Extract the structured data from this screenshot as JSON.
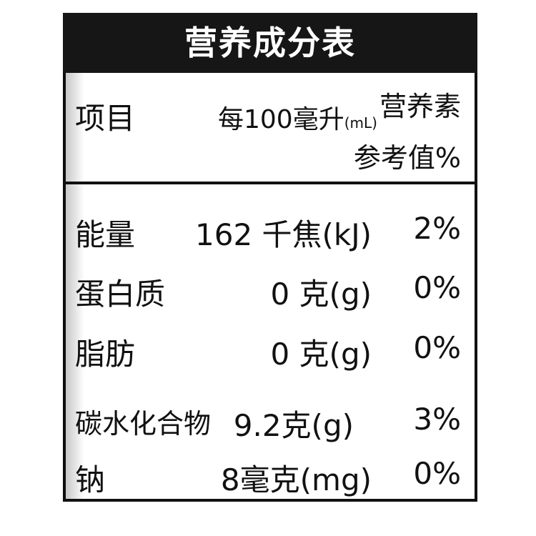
{
  "title": "营养成分表",
  "header": {
    "item": "项目",
    "per": "每100毫升",
    "per_unit": "(mL)",
    "nrv_line1": "营养素",
    "nrv_line2": "参考值%"
  },
  "rows": [
    {
      "name": "能量",
      "value": "162 千焦(kJ)",
      "nrv": "2%"
    },
    {
      "name": "蛋白质",
      "value": "0 克(g)",
      "nrv": "0%"
    },
    {
      "name": "脂肪",
      "value": "0 克(g)",
      "nrv": "0%"
    },
    {
      "name": "碳水化合物",
      "value": "9.2克(g)",
      "nrv": "3%"
    },
    {
      "name": "钠",
      "value": "8毫克(mg)",
      "nrv": "0%"
    }
  ]
}
